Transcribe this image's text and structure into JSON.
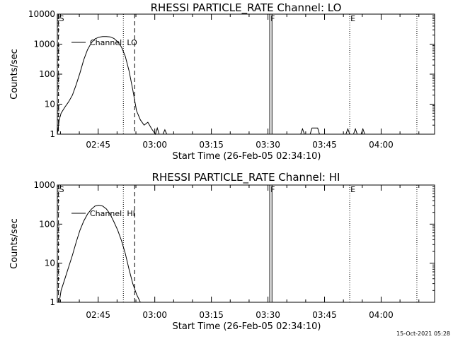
{
  "chart_data": [
    {
      "type": "line",
      "title": "RHESSI PARTICLE_RATE Channel: LO",
      "xlabel": "Start Time (26-Feb-05 02:34:10)",
      "ylabel": "Counts/sec",
      "yscale": "log",
      "ylim": [
        1,
        10000
      ],
      "xlim_minutes": [
        0,
        100
      ],
      "xticks": [
        {
          "min": 10.83,
          "label": "02:45"
        },
        {
          "min": 25.83,
          "label": "03:00"
        },
        {
          "min": 40.83,
          "label": "03:15"
        },
        {
          "min": 55.83,
          "label": "03:30"
        },
        {
          "min": 70.83,
          "label": "03:45"
        },
        {
          "min": 85.83,
          "label": "04:00"
        }
      ],
      "yticks": [
        {
          "value": 1,
          "label": "1"
        },
        {
          "value": 10,
          "label": "10"
        },
        {
          "value": 100,
          "label": "100"
        },
        {
          "value": 1000,
          "label": "1000"
        },
        {
          "value": 10000,
          "label": "10000"
        }
      ],
      "legend": "Channel: LO",
      "markers": [
        {
          "label": "S",
          "min": 0.3,
          "style": "dashed"
        },
        {
          "label": "",
          "min": 17.5,
          "style": "dotted"
        },
        {
          "label": "",
          "min": 20.5,
          "style": "dashed"
        },
        {
          "label": "F",
          "min": 56.3,
          "style": "solid"
        },
        {
          "label": "",
          "min": 56.9,
          "style": "solid"
        },
        {
          "label": "E",
          "min": 77.5,
          "style": "dotted"
        },
        {
          "label": "",
          "min": 95.3,
          "style": "dotted"
        }
      ],
      "series": [
        {
          "name": "Channel: LO",
          "points": [
            [
              0,
              1
            ],
            [
              0.5,
              3
            ],
            [
              1,
              5
            ],
            [
              2,
              8
            ],
            [
              3,
              12
            ],
            [
              4,
              20
            ],
            [
              5,
              45
            ],
            [
              6,
              110
            ],
            [
              7,
              300
            ],
            [
              8,
              650
            ],
            [
              9,
              1100
            ],
            [
              10,
              1500
            ],
            [
              11,
              1700
            ],
            [
              12,
              1800
            ],
            [
              13,
              1800
            ],
            [
              14,
              1750
            ],
            [
              15,
              1550
            ],
            [
              16,
              1200
            ],
            [
              17,
              800
            ],
            [
              18,
              400
            ],
            [
              19,
              130
            ],
            [
              20,
              30
            ],
            [
              21,
              6
            ],
            [
              22,
              3
            ],
            [
              23,
              2
            ],
            [
              24,
              2.5
            ],
            [
              25,
              1.5
            ],
            [
              26,
              1
            ],
            [
              26.5,
              1.6
            ],
            [
              27,
              1
            ],
            [
              28,
              1
            ],
            [
              28.5,
              1.4
            ],
            [
              29,
              1
            ]
          ]
        },
        {
          "name": "Channel: LO",
          "points": [
            [
              64.5,
              1
            ],
            [
              65,
              1.5
            ],
            [
              65.5,
              1
            ],
            [
              67,
              1
            ],
            [
              67.5,
              1.6
            ],
            [
              69,
              1.6
            ],
            [
              69.5,
              1
            ]
          ]
        },
        {
          "name": "Channel: LO",
          "points": [
            [
              76.5,
              1
            ],
            [
              77,
              1.5
            ],
            [
              77.5,
              1
            ],
            [
              78.5,
              1
            ],
            [
              79,
              1.5
            ],
            [
              79.5,
              1
            ],
            [
              80.5,
              1
            ],
            [
              81,
              1.5
            ],
            [
              81.5,
              1
            ]
          ]
        }
      ]
    },
    {
      "type": "line",
      "title": "RHESSI PARTICLE_RATE Channel: HI",
      "xlabel": "Start Time (26-Feb-05 02:34:10)",
      "ylabel": "Counts/sec",
      "yscale": "log",
      "ylim": [
        1,
        1000
      ],
      "xlim_minutes": [
        0,
        100
      ],
      "xticks": [
        {
          "min": 10.83,
          "label": "02:45"
        },
        {
          "min": 25.83,
          "label": "03:00"
        },
        {
          "min": 40.83,
          "label": "03:15"
        },
        {
          "min": 55.83,
          "label": "03:30"
        },
        {
          "min": 70.83,
          "label": "03:45"
        },
        {
          "min": 85.83,
          "label": "04:00"
        }
      ],
      "yticks": [
        {
          "value": 1,
          "label": "1"
        },
        {
          "value": 10,
          "label": "10"
        },
        {
          "value": 100,
          "label": "100"
        },
        {
          "value": 1000,
          "label": "1000"
        }
      ],
      "legend": "Channel: HI",
      "markers": [
        {
          "label": "S",
          "min": 0.3,
          "style": "dashed"
        },
        {
          "label": "",
          "min": 17.5,
          "style": "dotted"
        },
        {
          "label": "",
          "min": 20.5,
          "style": "dashed"
        },
        {
          "label": "F",
          "min": 56.3,
          "style": "solid"
        },
        {
          "label": "",
          "min": 56.9,
          "style": "solid"
        },
        {
          "label": "E",
          "min": 77.5,
          "style": "dotted"
        },
        {
          "label": "",
          "min": 95.3,
          "style": "dotted"
        }
      ],
      "series": [
        {
          "name": "Channel: HI",
          "points": [
            [
              0.5,
              1
            ],
            [
              1,
              2
            ],
            [
              2,
              4
            ],
            [
              3,
              8
            ],
            [
              4,
              16
            ],
            [
              5,
              35
            ],
            [
              6,
              70
            ],
            [
              7,
              120
            ],
            [
              8,
              180
            ],
            [
              9,
              240
            ],
            [
              10,
              290
            ],
            [
              11,
              305
            ],
            [
              12,
              290
            ],
            [
              13,
              245
            ],
            [
              14,
              180
            ],
            [
              15,
              115
            ],
            [
              16,
              70
            ],
            [
              17,
              38
            ],
            [
              18,
              18
            ],
            [
              19,
              7
            ],
            [
              20,
              3
            ],
            [
              21,
              1.6
            ],
            [
              22,
              1
            ]
          ]
        }
      ]
    }
  ],
  "timestamp": "15-Oct-2021 05:28"
}
